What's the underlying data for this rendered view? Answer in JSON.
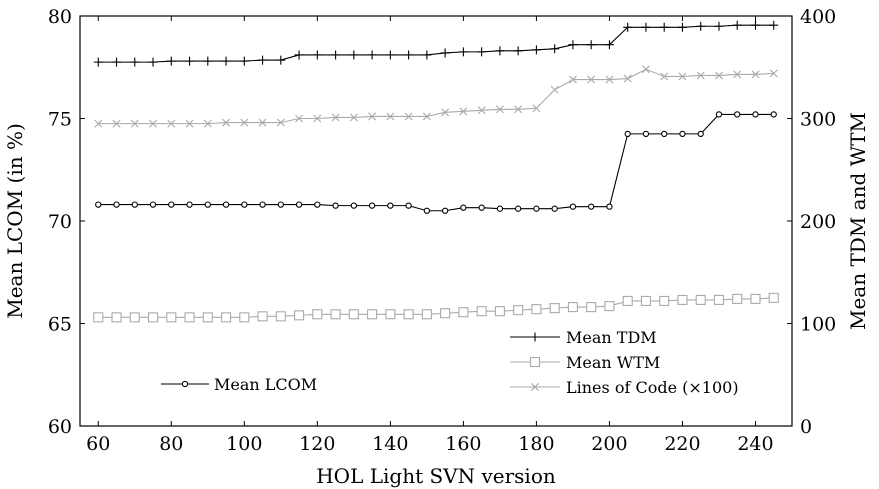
{
  "chart_data": {
    "type": "line",
    "xlabel": "HOL Light SVN version",
    "ylabel_left": "Mean LCOM (in %)",
    "ylabel_right": "Mean TDM and WTM",
    "xlim": [
      55,
      250
    ],
    "ylim_left": [
      60,
      80
    ],
    "ylim_right": [
      0,
      400
    ],
    "x_ticks": [
      60,
      80,
      100,
      120,
      140,
      160,
      180,
      200,
      220,
      240
    ],
    "y_ticks_left": [
      60,
      65,
      70,
      75,
      80
    ],
    "y_ticks_right": [
      0,
      100,
      200,
      300,
      400
    ],
    "grid": false,
    "x": [
      60,
      65,
      70,
      75,
      80,
      85,
      90,
      95,
      100,
      105,
      110,
      115,
      120,
      125,
      130,
      135,
      140,
      145,
      150,
      155,
      160,
      165,
      170,
      175,
      180,
      185,
      190,
      195,
      200,
      205,
      210,
      215,
      220,
      225,
      230,
      235,
      240,
      245
    ],
    "series": [
      {
        "name": "Mean TDM",
        "axis": "right",
        "marker": "plus",
        "color": "#000000",
        "values": [
          355,
          355,
          355,
          355,
          356,
          356,
          356,
          356,
          356,
          357,
          357,
          362,
          362,
          362,
          362,
          362,
          362,
          362,
          362,
          364,
          365,
          365,
          366,
          366,
          367,
          368,
          372,
          372,
          372,
          389,
          389,
          389,
          389,
          390,
          390,
          391,
          391,
          391
        ]
      },
      {
        "name": "Mean WTM",
        "axis": "right",
        "marker": "square",
        "color": "#aaaaaa",
        "values": [
          106,
          106,
          106,
          106,
          106,
          106,
          106,
          106,
          106,
          107,
          107,
          108,
          109,
          109,
          109,
          109,
          109,
          109,
          109,
          110,
          111,
          112,
          112,
          113,
          114,
          115,
          116,
          116,
          117,
          122,
          122,
          122,
          123,
          123,
          123,
          124,
          124,
          125
        ]
      },
      {
        "name": "Lines of Code (×100)",
        "axis": "right",
        "marker": "x",
        "color": "#aaaaaa",
        "values": [
          295,
          295,
          295,
          295,
          295,
          295,
          295,
          296,
          296,
          296,
          296,
          300,
          300,
          301,
          301,
          302,
          302,
          302,
          302,
          306,
          307,
          308,
          309,
          309,
          310,
          328,
          338,
          338,
          338,
          339,
          348,
          341,
          341,
          342,
          342,
          343,
          343,
          344
        ]
      },
      {
        "name": "Mean LCOM",
        "axis": "left",
        "marker": "circle",
        "color": "#000000",
        "values": [
          70.8,
          70.8,
          70.8,
          70.8,
          70.8,
          70.8,
          70.8,
          70.8,
          70.8,
          70.8,
          70.8,
          70.8,
          70.8,
          70.75,
          70.75,
          70.75,
          70.75,
          70.75,
          70.5,
          70.5,
          70.65,
          70.65,
          70.6,
          70.6,
          70.6,
          70.6,
          70.7,
          70.7,
          70.7,
          74.25,
          74.25,
          74.25,
          74.25,
          74.25,
          75.2,
          75.2,
          75.2,
          75.2
        ]
      }
    ]
  }
}
